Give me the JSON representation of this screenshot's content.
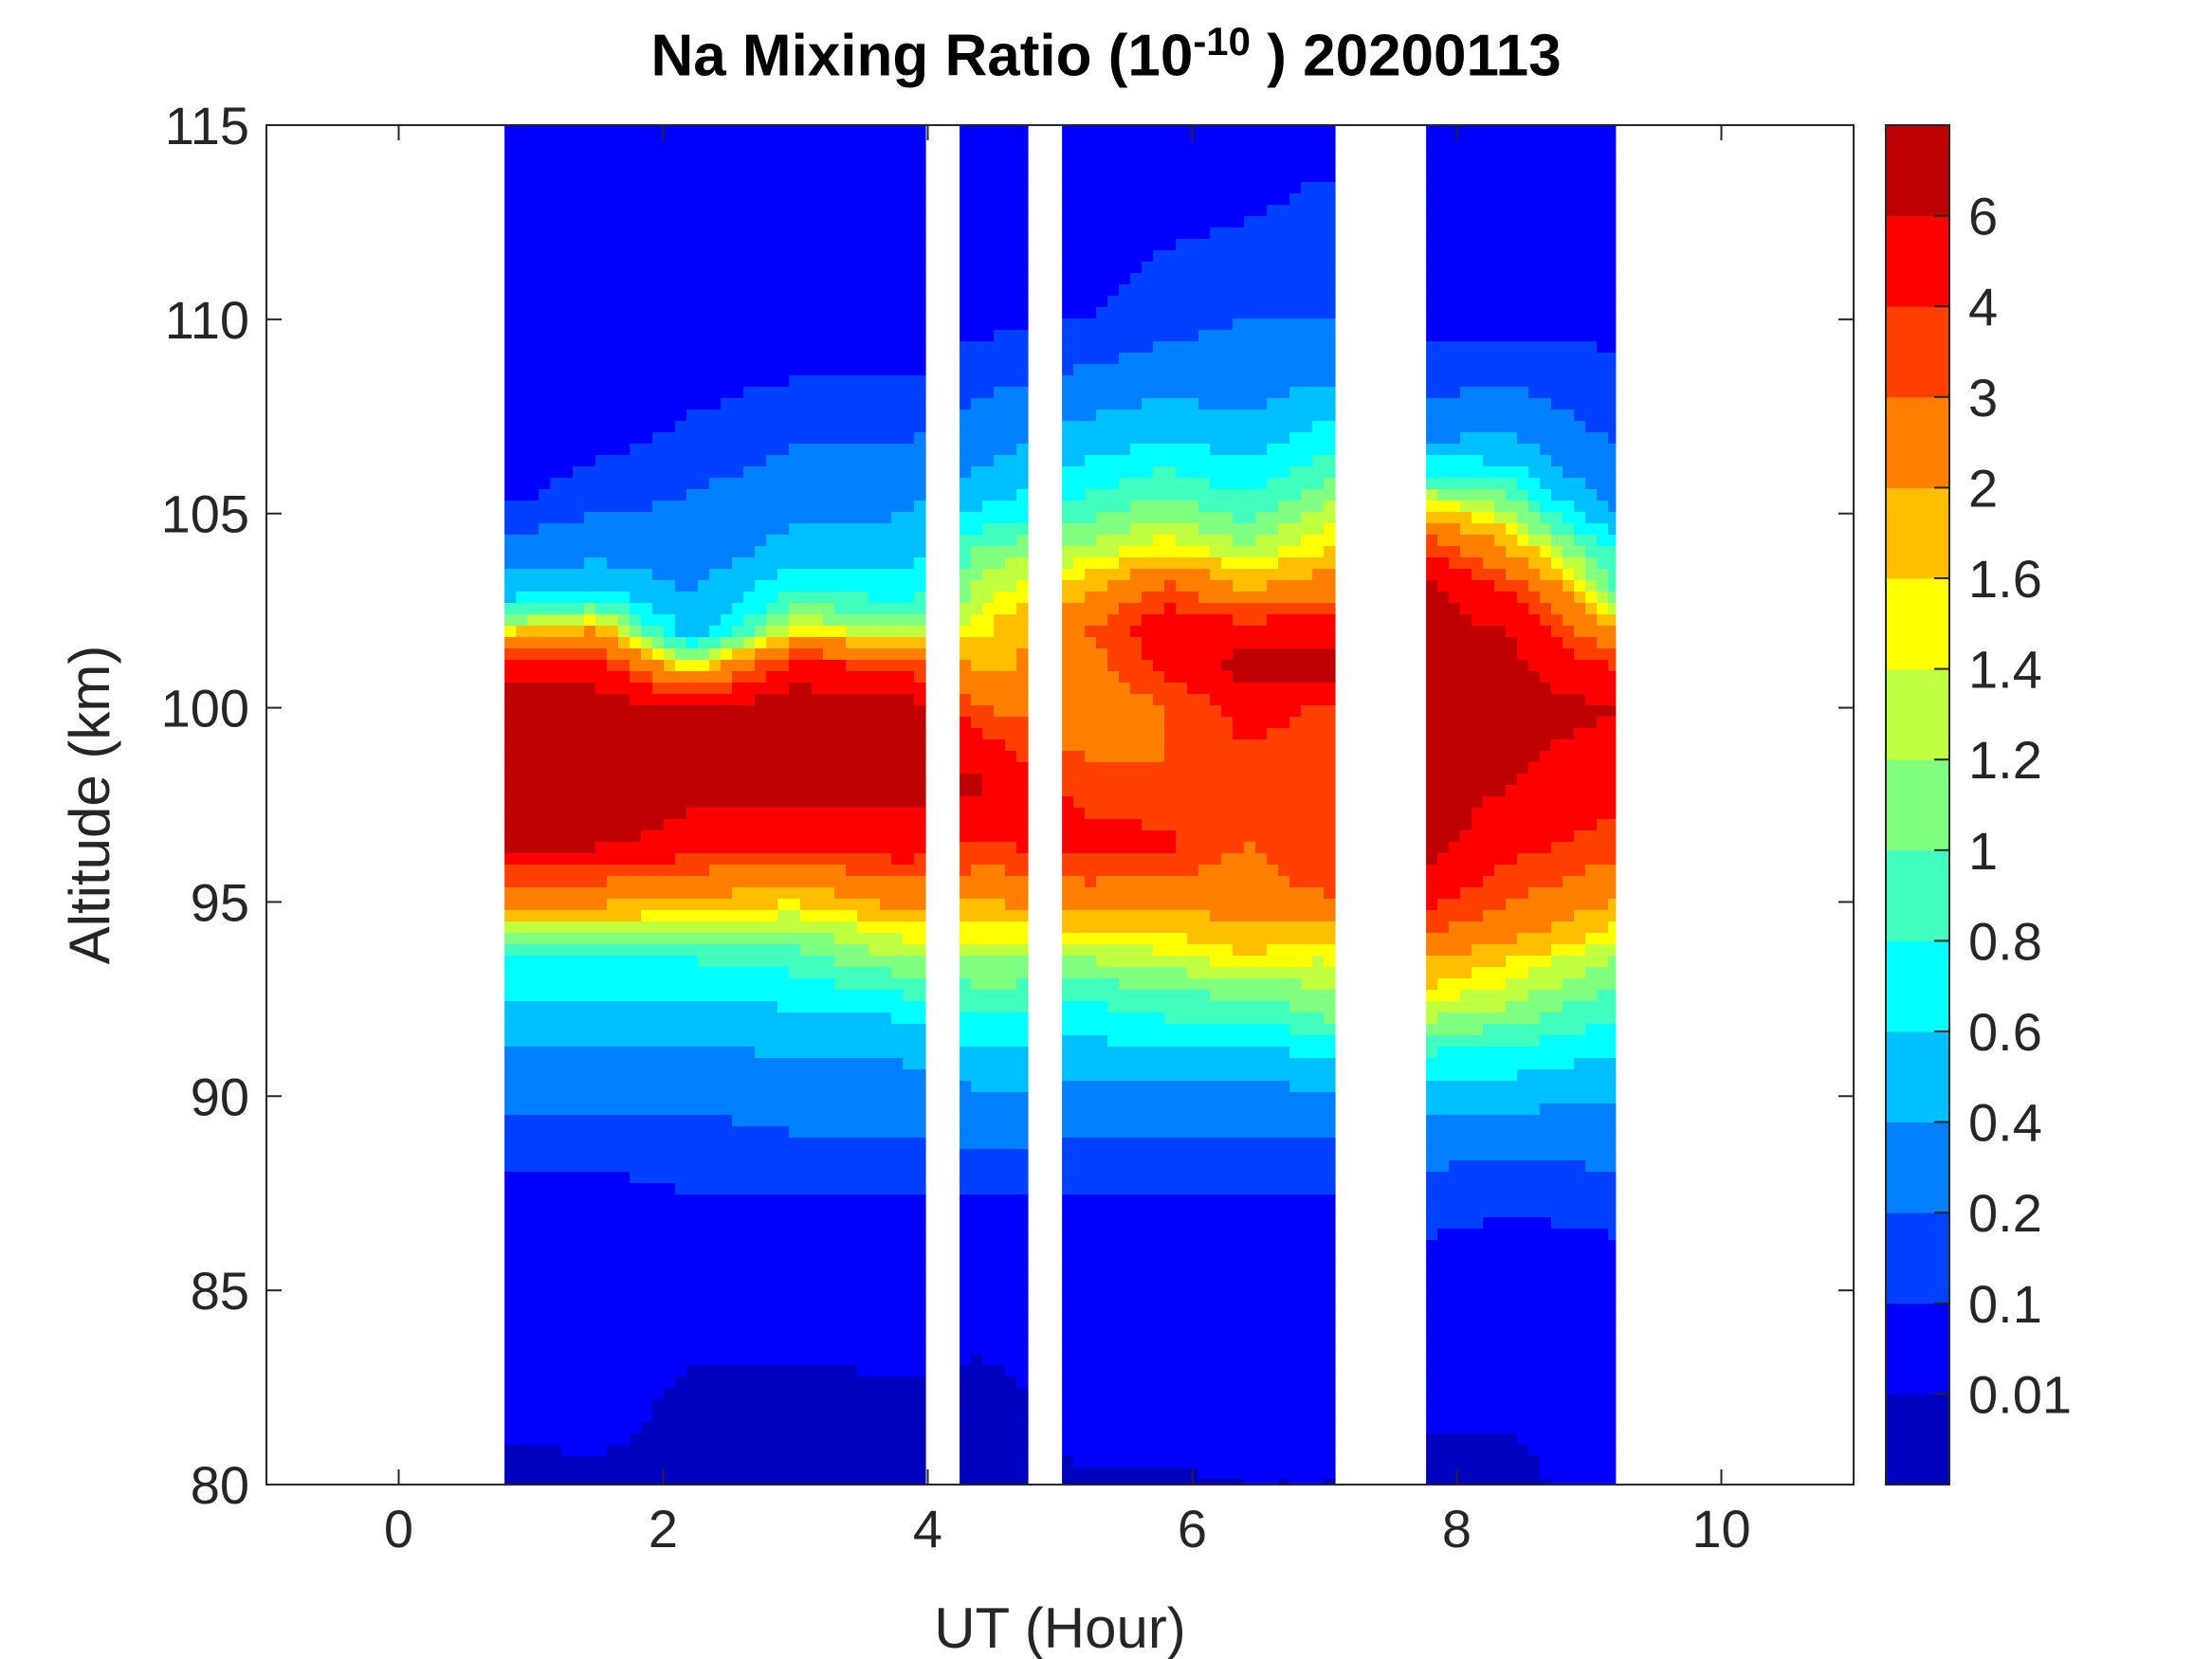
{
  "chart_data": {
    "type": "heatmap",
    "subtype": "filled-contour",
    "title": {
      "prefix": "Na Mixing Ratio (10",
      "exponent": "-10",
      "suffix": " ) 20200113"
    },
    "xlabel": "UT (Hour)",
    "ylabel": "Altitude (km)",
    "xlim": [
      -1,
      11
    ],
    "ylim": [
      80,
      115
    ],
    "xticks": [
      "0",
      "2",
      "4",
      "6",
      "8",
      "10"
    ],
    "yticks": [
      "80",
      "85",
      "90",
      "95",
      "100",
      "105",
      "110",
      "115"
    ],
    "colorbar": {
      "levels": [
        "0.01",
        "0.1",
        "0.2",
        "0.4",
        "0.6",
        "0.8",
        "1",
        "1.2",
        "1.4",
        "1.6",
        "2",
        "3",
        "4",
        "6"
      ],
      "level_values": [
        0.01,
        0.1,
        0.2,
        0.4,
        0.6,
        0.8,
        1,
        1.2,
        1.4,
        1.6,
        2,
        3,
        4,
        6
      ],
      "colors": [
        "#0000BF",
        "#0000FF",
        "#0040FF",
        "#0080FF",
        "#00BFFF",
        "#00FFFF",
        "#40FFBF",
        "#80FF80",
        "#BFFF40",
        "#FFFF00",
        "#FFBF00",
        "#FF8000",
        "#FF4000",
        "#FF0000",
        "#BF0000"
      ]
    },
    "data_gaps_hours": [
      [
        4.0,
        4.2
      ],
      [
        4.75,
        5.0
      ],
      [
        7.1,
        7.75
      ]
    ],
    "times": [
      0.8,
      1.5,
      2.2,
      3.0,
      3.8,
      4.4,
      5.2,
      5.8,
      6.4,
      7.0,
      7.8,
      8.4,
      9.2
    ],
    "altitudes": [
      80,
      82.5,
      85,
      87.5,
      89,
      90.5,
      92,
      93.5,
      94.5,
      95.5,
      96.5,
      98,
      100,
      101,
      102,
      103,
      104,
      105.5,
      107.5,
      110,
      115
    ],
    "values": [
      [
        0.005,
        0.03,
        0.05,
        0.08,
        0.15,
        0.3,
        0.5,
        0.8,
        1.5,
        3,
        6.5,
        8,
        7.5,
        5,
        1.5,
        0.5,
        0.3,
        0.08,
        0.05,
        0.04,
        0.03
      ],
      [
        0.005,
        0.04,
        0.05,
        0.08,
        0.15,
        0.3,
        0.5,
        0.8,
        1.5,
        3,
        6.5,
        8,
        7.5,
        5,
        2,
        0.6,
        0.35,
        0.15,
        0.06,
        0.04,
        0.03
      ],
      [
        0.005,
        0.006,
        0.06,
        0.1,
        0.15,
        0.3,
        0.5,
        0.8,
        1.4,
        2.5,
        5,
        7,
        6.5,
        1.5,
        0.5,
        0.4,
        0.3,
        0.2,
        0.1,
        0.05,
        0.03
      ],
      [
        0.005,
        0.006,
        0.05,
        0.1,
        0.2,
        0.35,
        0.55,
        0.9,
        1.3,
        2,
        4.5,
        7.5,
        7.5,
        5,
        1.5,
        0.8,
        0.5,
        0.3,
        0.15,
        0.05,
        0.03
      ],
      [
        0.005,
        0.008,
        0.05,
        0.1,
        0.2,
        0.35,
        0.6,
        1.2,
        1.6,
        3,
        5,
        7,
        7.5,
        4,
        1.2,
        0.7,
        0.5,
        0.35,
        0.15,
        0.05,
        0.03
      ],
      [
        0.005,
        0.005,
        0.05,
        0.1,
        0.25,
        0.45,
        0.8,
        1.2,
        1.6,
        2.5,
        4,
        6.5,
        3,
        1.8,
        1.5,
        1.3,
        1.1,
        0.5,
        0.25,
        0.08,
        0.04
      ],
      [
        0.008,
        0.03,
        0.05,
        0.1,
        0.2,
        0.45,
        0.7,
        1.2,
        1.8,
        3,
        4.5,
        3.5,
        2.2,
        2.5,
        3,
        1.8,
        1.3,
        0.8,
        0.4,
        0.1,
        0.04
      ],
      [
        0.008,
        0.03,
        0.05,
        0.1,
        0.2,
        0.45,
        0.8,
        1.3,
        1.8,
        2.8,
        4.5,
        3,
        3,
        4.5,
        5,
        3.5,
        1.6,
        1,
        0.5,
        0.15,
        0.05
      ],
      [
        0.01,
        0.03,
        0.06,
        0.1,
        0.2,
        0.4,
        0.8,
        1.5,
        2,
        2.5,
        3,
        3.5,
        4.5,
        7,
        5,
        2,
        1.3,
        0.8,
        0.4,
        0.2,
        0.05
      ],
      [
        0.01,
        0.03,
        0.06,
        0.1,
        0.2,
        0.5,
        1,
        1.4,
        2,
        3.5,
        3.5,
        3.5,
        3.8,
        7,
        5,
        2.5,
        1.6,
        1.1,
        0.6,
        0.2,
        0.08
      ],
      [
        0.005,
        0.02,
        0.06,
        0.15,
        0.3,
        0.6,
        1.2,
        2,
        3.5,
        5,
        7,
        7.5,
        7.5,
        7,
        7,
        6.5,
        4,
        1.2,
        0.25,
        0.08,
        0.05
      ],
      [
        0.005,
        0.02,
        0.05,
        0.12,
        0.3,
        0.6,
        1.1,
        1.6,
        2.5,
        3.5,
        4.5,
        6,
        7,
        6.5,
        6,
        4,
        2,
        1,
        0.3,
        0.08,
        0.05
      ],
      [
        0.03,
        0.04,
        0.06,
        0.15,
        0.3,
        0.5,
        0.8,
        1.2,
        1.6,
        2.5,
        3.5,
        4.5,
        6.2,
        4,
        2,
        1,
        0.8,
        0.3,
        0.15,
        0.08,
        0.05
      ]
    ]
  }
}
